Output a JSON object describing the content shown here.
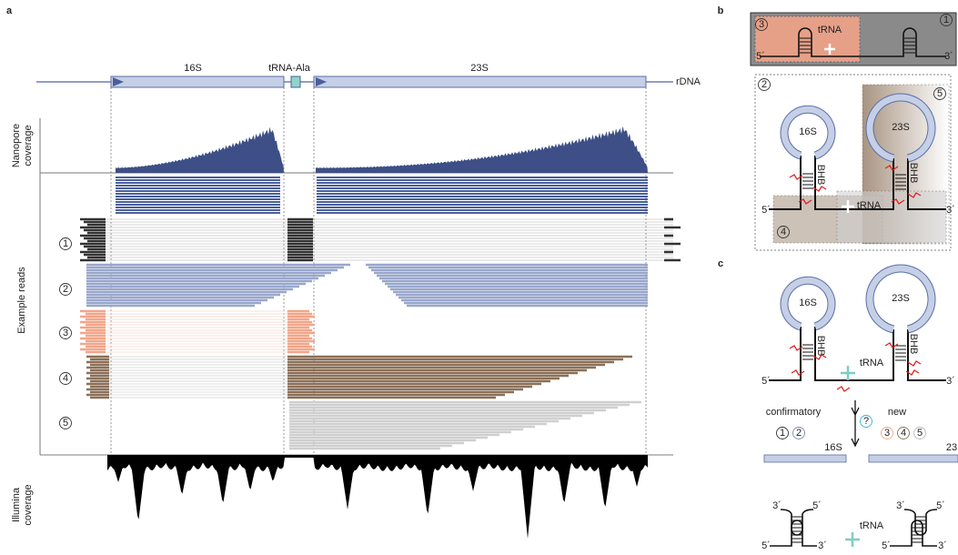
{
  "panel_a": {
    "label": "a",
    "genes": [
      "16S",
      "tRNA-Ala",
      "23S"
    ],
    "track_label": "rDNA",
    "axis_labels": {
      "nanopore": [
        "Nanopore",
        "coverage"
      ],
      "reads": "Example reads",
      "illumina": [
        "Illumina",
        "coverage"
      ]
    },
    "read_groups": [
      "1",
      "2",
      "3",
      "4",
      "5"
    ]
  },
  "panel_b": {
    "label": "b",
    "top": {
      "marker_3": "3",
      "marker_1": "1",
      "trna": "tRNA",
      "end5": "5´",
      "end3": "3´"
    },
    "bottom": {
      "marker_2": "2",
      "marker_5": "5",
      "marker_4": "4",
      "rrna_16s": "16S",
      "rrna_23s": "23S",
      "bhb_left": "BHB",
      "bhb_right": "BHB",
      "trna": "tRNA",
      "end5": "5´",
      "end3": "3´"
    }
  },
  "panel_c": {
    "label": "c",
    "precursor": {
      "rrna_16s": "16S",
      "rrna_23s": "23S",
      "bhb_left": "BHB",
      "bhb_right": "BHB",
      "trna": "tRNA",
      "end5": "5´",
      "end3": "3´"
    },
    "confirmatory": "confirmatory",
    "new": "new",
    "question": "?",
    "confirmatory_markers": [
      "1",
      "2"
    ],
    "new_markers": [
      "3",
      "4",
      "5"
    ],
    "products": {
      "bar_16s": "16S",
      "bar_23s": "23",
      "left_hairpin": {
        "end3": "3´",
        "end5": "5´"
      },
      "right_hairpin": {
        "end3": "3´",
        "end5": "5´"
      },
      "trna": "tRNA",
      "left_linear": {
        "end5": "5´",
        "end3": "3´"
      },
      "right_linear": {
        "end5": "5´",
        "end3": "3´"
      }
    }
  }
}
